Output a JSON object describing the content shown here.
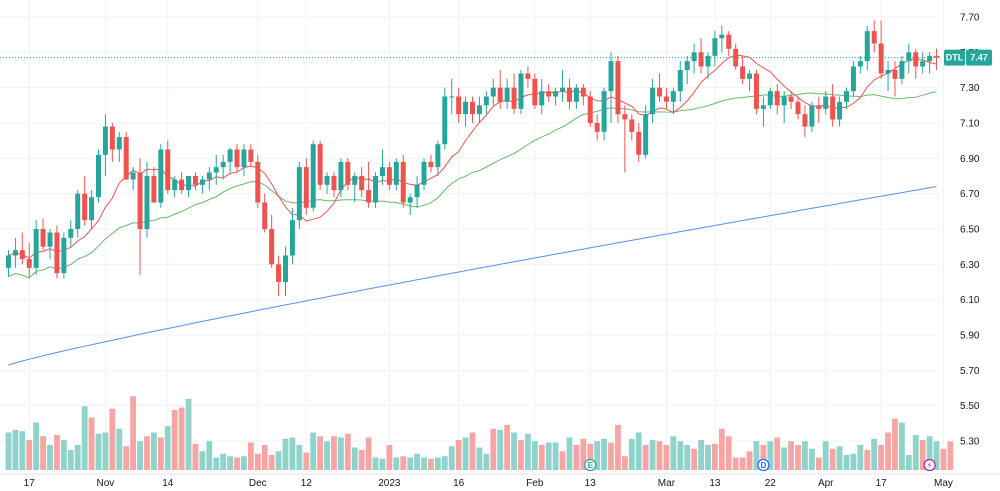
{
  "chart_data": {
    "type": "candlestick",
    "symbol": "DTL",
    "last_price": "7.47",
    "colors": {
      "up": "#26a69a",
      "down": "#ef5350",
      "up_volume": "#8fd3cb",
      "down_volume": "#f5a6a4",
      "ma_short": "#ef5350",
      "ma_medium": "#66bb6a",
      "ma_long": "#5b8def",
      "grid": "#f0f3fa",
      "price_line": "#26a69a"
    },
    "ylim": [
      5.2,
      7.75
    ],
    "y_ticks": [
      "7.70",
      "7.50",
      "7.30",
      "7.10",
      "6.90",
      "6.70",
      "6.50",
      "6.30",
      "6.10",
      "5.90",
      "5.70",
      "5.50",
      "5.30"
    ],
    "x_ticks": [
      {
        "label": "17",
        "i": 3
      },
      {
        "label": "Nov",
        "i": 14
      },
      {
        "label": "14",
        "i": 23
      },
      {
        "label": "Dec",
        "i": 36
      },
      {
        "label": "12",
        "i": 43
      },
      {
        "label": "2023",
        "i": 55
      },
      {
        "label": "16",
        "i": 65
      },
      {
        "label": "Feb",
        "i": 76
      },
      {
        "label": "13",
        "i": 84
      },
      {
        "label": "Mar",
        "i": 95
      },
      {
        "label": "13",
        "i": 102
      },
      {
        "label": "22",
        "i": 110
      },
      {
        "label": "Apr",
        "i": 118
      },
      {
        "label": "17",
        "i": 126
      },
      {
        "label": "May",
        "i": 135
      }
    ],
    "candles": [
      [
        6.28,
        6.38,
        6.23,
        6.35
      ],
      [
        6.35,
        6.45,
        6.28,
        6.38
      ],
      [
        6.38,
        6.48,
        6.3,
        6.33
      ],
      [
        6.33,
        6.42,
        6.22,
        6.28
      ],
      [
        6.28,
        6.55,
        6.24,
        6.5
      ],
      [
        6.5,
        6.56,
        6.38,
        6.4
      ],
      [
        6.4,
        6.5,
        6.33,
        6.48
      ],
      [
        6.48,
        6.52,
        6.22,
        6.25
      ],
      [
        6.25,
        6.48,
        6.22,
        6.45
      ],
      [
        6.45,
        6.55,
        6.4,
        6.5
      ],
      [
        6.5,
        6.72,
        6.45,
        6.7
      ],
      [
        6.7,
        6.8,
        6.52,
        6.55
      ],
      [
        6.55,
        6.72,
        6.5,
        6.68
      ],
      [
        6.68,
        6.95,
        6.65,
        6.92
      ],
      [
        6.92,
        7.15,
        6.8,
        7.08
      ],
      [
        7.08,
        7.1,
        6.88,
        6.95
      ],
      [
        6.95,
        7.05,
        6.88,
        7.02
      ],
      [
        7.02,
        7.05,
        6.78,
        6.78
      ],
      [
        6.78,
        6.85,
        6.72,
        6.82
      ],
      [
        6.82,
        6.9,
        6.24,
        6.5
      ],
      [
        6.5,
        6.88,
        6.45,
        6.8
      ],
      [
        6.8,
        6.85,
        6.65,
        6.65
      ],
      [
        6.65,
        6.98,
        6.62,
        6.95
      ],
      [
        6.95,
        7.0,
        6.7,
        6.72
      ],
      [
        6.72,
        6.8,
        6.68,
        6.78
      ],
      [
        6.78,
        6.82,
        6.7,
        6.72
      ],
      [
        6.72,
        6.8,
        6.68,
        6.8
      ],
      [
        6.8,
        6.82,
        6.72,
        6.75
      ],
      [
        6.75,
        6.8,
        6.7,
        6.78
      ],
      [
        6.78,
        6.85,
        6.72,
        6.82
      ],
      [
        6.82,
        6.92,
        6.75,
        6.85
      ],
      [
        6.85,
        6.92,
        6.78,
        6.88
      ],
      [
        6.88,
        6.96,
        6.82,
        6.95
      ],
      [
        6.95,
        6.98,
        6.82,
        6.85
      ],
      [
        6.85,
        6.98,
        6.8,
        6.95
      ],
      [
        6.95,
        6.98,
        6.85,
        6.88
      ],
      [
        6.88,
        6.92,
        6.62,
        6.65
      ],
      [
        6.65,
        6.7,
        6.48,
        6.5
      ],
      [
        6.5,
        6.58,
        6.28,
        6.3
      ],
      [
        6.3,
        6.35,
        6.12,
        6.2
      ],
      [
        6.2,
        6.4,
        6.12,
        6.35
      ],
      [
        6.35,
        6.62,
        6.3,
        6.55
      ],
      [
        6.55,
        6.88,
        6.5,
        6.85
      ],
      [
        6.85,
        6.9,
        6.58,
        6.62
      ],
      [
        6.62,
        7.0,
        6.6,
        6.98
      ],
      [
        6.98,
        7.0,
        6.72,
        6.75
      ],
      [
        6.75,
        6.82,
        6.7,
        6.8
      ],
      [
        6.8,
        6.82,
        6.68,
        6.72
      ],
      [
        6.72,
        6.9,
        6.68,
        6.88
      ],
      [
        6.88,
        6.9,
        6.72,
        6.75
      ],
      [
        6.75,
        6.82,
        6.65,
        6.8
      ],
      [
        6.8,
        6.85,
        6.68,
        6.72
      ],
      [
        6.72,
        6.88,
        6.62,
        6.65
      ],
      [
        6.65,
        6.82,
        6.62,
        6.8
      ],
      [
        6.8,
        6.95,
        6.75,
        6.85
      ],
      [
        6.85,
        6.88,
        6.72,
        6.75
      ],
      [
        6.75,
        6.9,
        6.72,
        6.88
      ],
      [
        6.88,
        6.92,
        6.62,
        6.65
      ],
      [
        6.65,
        6.7,
        6.58,
        6.68
      ],
      [
        6.68,
        6.8,
        6.62,
        6.75
      ],
      [
        6.75,
        6.9,
        6.72,
        6.88
      ],
      [
        6.88,
        6.92,
        6.82,
        6.85
      ],
      [
        6.85,
        7.0,
        6.8,
        6.98
      ],
      [
        6.98,
        7.3,
        6.95,
        7.25
      ],
      [
        7.25,
        7.35,
        7.15,
        7.25
      ],
      [
        7.25,
        7.3,
        7.1,
        7.15
      ],
      [
        7.15,
        7.25,
        7.08,
        7.22
      ],
      [
        7.22,
        7.25,
        7.1,
        7.15
      ],
      [
        7.15,
        7.25,
        7.1,
        7.2
      ],
      [
        7.2,
        7.28,
        7.15,
        7.25
      ],
      [
        7.25,
        7.35,
        7.2,
        7.3
      ],
      [
        7.3,
        7.4,
        7.18,
        7.22
      ],
      [
        7.22,
        7.35,
        7.18,
        7.3
      ],
      [
        7.3,
        7.38,
        7.15,
        7.18
      ],
      [
        7.18,
        7.4,
        7.15,
        7.38
      ],
      [
        7.38,
        7.42,
        7.3,
        7.35
      ],
      [
        7.35,
        7.38,
        7.18,
        7.2
      ],
      [
        7.2,
        7.35,
        7.15,
        7.28
      ],
      [
        7.28,
        7.32,
        7.22,
        7.25
      ],
      [
        7.25,
        7.3,
        7.2,
        7.28
      ],
      [
        7.28,
        7.4,
        7.22,
        7.3
      ],
      [
        7.3,
        7.35,
        7.18,
        7.22
      ],
      [
        7.22,
        7.32,
        7.18,
        7.3
      ],
      [
        7.3,
        7.32,
        7.2,
        7.25
      ],
      [
        7.25,
        7.28,
        7.08,
        7.1
      ],
      [
        7.1,
        7.15,
        7.0,
        7.05
      ],
      [
        7.05,
        7.3,
        7.0,
        7.28
      ],
      [
        7.28,
        7.5,
        7.1,
        7.45
      ],
      [
        7.45,
        7.48,
        7.1,
        7.15
      ],
      [
        7.15,
        7.2,
        6.82,
        7.12
      ],
      [
        7.12,
        7.15,
        7.0,
        7.05
      ],
      [
        7.05,
        7.1,
        6.88,
        6.92
      ],
      [
        6.92,
        7.2,
        6.9,
        7.15
      ],
      [
        7.15,
        7.35,
        7.1,
        7.3
      ],
      [
        7.3,
        7.38,
        7.22,
        7.25
      ],
      [
        7.25,
        7.3,
        7.18,
        7.22
      ],
      [
        7.22,
        7.3,
        7.15,
        7.28
      ],
      [
        7.28,
        7.45,
        7.22,
        7.4
      ],
      [
        7.4,
        7.48,
        7.32,
        7.45
      ],
      [
        7.45,
        7.55,
        7.38,
        7.5
      ],
      [
        7.5,
        7.58,
        7.38,
        7.42
      ],
      [
        7.42,
        7.5,
        7.35,
        7.48
      ],
      [
        7.48,
        7.62,
        7.42,
        7.58
      ],
      [
        7.58,
        7.65,
        7.5,
        7.6
      ],
      [
        7.6,
        7.62,
        7.48,
        7.52
      ],
      [
        7.52,
        7.55,
        7.4,
        7.42
      ],
      [
        7.42,
        7.48,
        7.32,
        7.35
      ],
      [
        7.35,
        7.4,
        7.28,
        7.38
      ],
      [
        7.38,
        7.4,
        7.15,
        7.18
      ],
      [
        7.18,
        7.25,
        7.08,
        7.2
      ],
      [
        7.2,
        7.3,
        7.18,
        7.28
      ],
      [
        7.28,
        7.32,
        7.15,
        7.2
      ],
      [
        7.2,
        7.28,
        7.1,
        7.25
      ],
      [
        7.25,
        7.28,
        7.18,
        7.22
      ],
      [
        7.22,
        7.25,
        7.12,
        7.15
      ],
      [
        7.15,
        7.2,
        7.02,
        7.08
      ],
      [
        7.08,
        7.22,
        7.05,
        7.2
      ],
      [
        7.2,
        7.25,
        7.1,
        7.18
      ],
      [
        7.18,
        7.28,
        7.15,
        7.25
      ],
      [
        7.25,
        7.32,
        7.08,
        7.12
      ],
      [
        7.12,
        7.25,
        7.08,
        7.22
      ],
      [
        7.22,
        7.3,
        7.18,
        7.28
      ],
      [
        7.28,
        7.45,
        7.25,
        7.42
      ],
      [
        7.42,
        7.48,
        7.38,
        7.45
      ],
      [
        7.45,
        7.65,
        7.4,
        7.62
      ],
      [
        7.62,
        7.68,
        7.5,
        7.55
      ],
      [
        7.55,
        7.68,
        7.35,
        7.38
      ],
      [
        7.38,
        7.45,
        7.28,
        7.4
      ],
      [
        7.4,
        7.45,
        7.25,
        7.35
      ],
      [
        7.35,
        7.48,
        7.32,
        7.45
      ],
      [
        7.45,
        7.55,
        7.38,
        7.5
      ],
      [
        7.5,
        7.52,
        7.35,
        7.42
      ],
      [
        7.42,
        7.5,
        7.38,
        7.45
      ],
      [
        7.45,
        7.5,
        7.38,
        7.48
      ],
      [
        7.48,
        7.52,
        7.4,
        7.47
      ]
    ],
    "volume": [
      0.3,
      0.32,
      0.31,
      0.24,
      0.38,
      0.27,
      0.2,
      0.28,
      0.24,
      0.16,
      0.2,
      0.51,
      0.42,
      0.29,
      0.3,
      0.49,
      0.33,
      0.19,
      0.59,
      0.23,
      0.27,
      0.3,
      0.26,
      0.35,
      0.48,
      0.5,
      0.57,
      0.21,
      0.15,
      0.23,
      0.1,
      0.13,
      0.11,
      0.1,
      0.11,
      0.22,
      0.13,
      0.2,
      0.12,
      0.15,
      0.25,
      0.26,
      0.2,
      0.14,
      0.3,
      0.27,
      0.23,
      0.27,
      0.26,
      0.29,
      0.18,
      0.16,
      0.26,
      0.1,
      0.09,
      0.2,
      0.1,
      0.11,
      0.1,
      0.13,
      0.1,
      0.09,
      0.1,
      0.11,
      0.19,
      0.24,
      0.26,
      0.3,
      0.18,
      0.13,
      0.33,
      0.32,
      0.36,
      0.3,
      0.24,
      0.29,
      0.23,
      0.2,
      0.22,
      0.22,
      0.15,
      0.26,
      0.2,
      0.25,
      0.21,
      0.23,
      0.25,
      0.22,
      0.36,
      0.11,
      0.25,
      0.3,
      0.2,
      0.24,
      0.23,
      0.2,
      0.27,
      0.23,
      0.2,
      0.17,
      0.24,
      0.2,
      0.21,
      0.33,
      0.27,
      0.1,
      0.1,
      0.15,
      0.23,
      0.2,
      0.23,
      0.26,
      0.18,
      0.23,
      0.2,
      0.23,
      0.17,
      0.1,
      0.23,
      0.17,
      0.19,
      0.12,
      0.13,
      0.2,
      0.16,
      0.25,
      0.2,
      0.3,
      0.41,
      0.38,
      0.12,
      0.28,
      0.24,
      0.27,
      0.23,
      0.17,
      0.23
    ],
    "volume_up": [
      true,
      true,
      true,
      false,
      true,
      false,
      true,
      false,
      true,
      true,
      true,
      true,
      false,
      true,
      true,
      false,
      true,
      false,
      false,
      true,
      false,
      true,
      false,
      true,
      false,
      false,
      true,
      false,
      true,
      true,
      true,
      true,
      true,
      false,
      true,
      false,
      false,
      false,
      false,
      true,
      true,
      true,
      true,
      false,
      true,
      false,
      true,
      false,
      true,
      false,
      true,
      false,
      false,
      true,
      true,
      false,
      true,
      false,
      true,
      true,
      true,
      false,
      true,
      true,
      true,
      false,
      true,
      false,
      true,
      true,
      false,
      true,
      false,
      true,
      false,
      true,
      true,
      false,
      true,
      true,
      false,
      true,
      false,
      false,
      false,
      true,
      true,
      false,
      false,
      false,
      true,
      true,
      false,
      true,
      false,
      false,
      true,
      true,
      true,
      false,
      true,
      true,
      false,
      false,
      false,
      false,
      false,
      false,
      true,
      false,
      true,
      false,
      true,
      false,
      false,
      true,
      true,
      false,
      true,
      false,
      true,
      true,
      true,
      true,
      false,
      true,
      false,
      false,
      false,
      true,
      true,
      true,
      false,
      true,
      true
    ],
    "ma_short": [],
    "ma_medium": [],
    "ma_long": [],
    "events": [
      {
        "i": 84,
        "symbol": "E",
        "color": "#26a69a"
      },
      {
        "i": 109,
        "symbol": "D",
        "color": "#2962ff"
      },
      {
        "i": 133,
        "symbol": "⚡",
        "color": "#9c27b0"
      }
    ],
    "title": "",
    "xlabel": "",
    "ylabel": "",
    "legend": "none",
    "grid": true
  }
}
